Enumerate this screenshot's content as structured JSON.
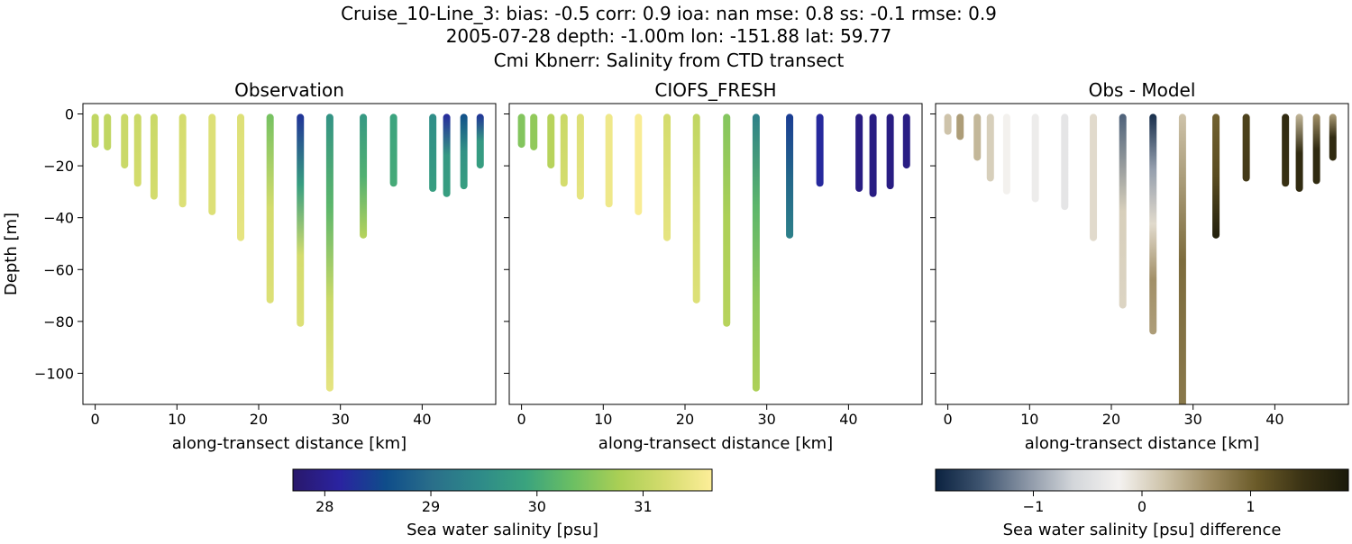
{
  "title_lines": [
    "Cruise_10-Line_3: bias: -0.5  corr: 0.9  ioa: nan  mse: 0.8  ss: -0.1  rmse: 0.9",
    "2005-07-28 depth: -1.00m lon: -151.88 lat: 59.77",
    "Cmi Kbnerr: Salinity from CTD transect"
  ],
  "chart_data": [
    {
      "type": "scatter",
      "title": "Observation",
      "xlabel": "along-transect distance [km]",
      "ylabel": "Depth [m]",
      "xlim": [
        -1.5,
        49
      ],
      "ylim": [
        -112,
        4
      ],
      "xticks": [
        0,
        10,
        20,
        30,
        40
      ],
      "yticks": [
        0,
        -20,
        -40,
        -60,
        -80,
        -100
      ],
      "colorbar": "salinity",
      "casts": [
        {
          "x": 0.0,
          "bottom": -12,
          "stops": [
            31.0,
            31.0
          ]
        },
        {
          "x": 1.5,
          "bottom": -13,
          "stops": [
            31.0,
            31.0
          ]
        },
        {
          "x": 3.6,
          "bottom": -20,
          "stops": [
            31.1,
            31.1
          ]
        },
        {
          "x": 5.2,
          "bottom": -27,
          "stops": [
            31.1,
            31.2
          ]
        },
        {
          "x": 7.2,
          "bottom": -32,
          "stops": [
            31.1,
            31.2
          ]
        },
        {
          "x": 10.7,
          "bottom": -35,
          "stops": [
            31.2,
            31.3
          ]
        },
        {
          "x": 14.3,
          "bottom": -38,
          "stops": [
            31.3,
            31.3
          ]
        },
        {
          "x": 17.8,
          "bottom": -48,
          "stops": [
            31.3,
            31.4
          ]
        },
        {
          "x": 21.4,
          "bottom": -72,
          "stops": [
            30.4,
            31.2,
            31.3
          ]
        },
        {
          "x": 25.1,
          "bottom": -81,
          "stops": [
            28.3,
            29.8,
            31.2,
            31.3
          ]
        },
        {
          "x": 28.7,
          "bottom": -106,
          "stops": [
            29.6,
            30.2,
            31.1,
            31.4
          ]
        },
        {
          "x": 32.8,
          "bottom": -47,
          "stops": [
            29.7,
            30.1,
            30.9
          ]
        },
        {
          "x": 36.5,
          "bottom": -27,
          "stops": [
            29.9,
            30.0
          ]
        },
        {
          "x": 41.3,
          "bottom": -29,
          "stops": [
            29.5,
            29.8
          ]
        },
        {
          "x": 43.0,
          "bottom": -31,
          "stops": [
            28.2,
            29.7,
            29.8
          ]
        },
        {
          "x": 45.1,
          "bottom": -28,
          "stops": [
            28.6,
            29.6,
            29.8
          ]
        },
        {
          "x": 47.1,
          "bottom": -20,
          "stops": [
            28.3,
            29.7,
            29.8
          ]
        }
      ]
    },
    {
      "type": "scatter",
      "title": "CIOFS_FRESH",
      "xlabel": "along-transect distance [km]",
      "xlim": [
        -1.5,
        49
      ],
      "ylim": [
        -112,
        4
      ],
      "xticks": [
        0,
        10,
        20,
        30,
        40
      ],
      "colorbar": "salinity",
      "casts": [
        {
          "x": 0.0,
          "bottom": -12,
          "stops": [
            30.5,
            30.5
          ]
        },
        {
          "x": 1.5,
          "bottom": -13,
          "stops": [
            30.6,
            30.6
          ]
        },
        {
          "x": 3.6,
          "bottom": -20,
          "stops": [
            30.9,
            30.9
          ]
        },
        {
          "x": 5.2,
          "bottom": -27,
          "stops": [
            31.1,
            31.2
          ]
        },
        {
          "x": 7.2,
          "bottom": -32,
          "stops": [
            31.3,
            31.4
          ]
        },
        {
          "x": 10.7,
          "bottom": -35,
          "stops": [
            31.5,
            31.5
          ]
        },
        {
          "x": 14.3,
          "bottom": -38,
          "stops": [
            31.6,
            31.6
          ]
        },
        {
          "x": 17.8,
          "bottom": -48,
          "stops": [
            31.2,
            31.4
          ]
        },
        {
          "x": 21.4,
          "bottom": -72,
          "stops": [
            31.0,
            31.2,
            31.3
          ]
        },
        {
          "x": 25.1,
          "bottom": -81,
          "stops": [
            30.5,
            30.8,
            30.9
          ]
        },
        {
          "x": 28.7,
          "bottom": -106,
          "stops": [
            29.3,
            30.2,
            30.6,
            30.8
          ]
        },
        {
          "x": 32.8,
          "bottom": -47,
          "stops": [
            28.4,
            28.9,
            29.3
          ]
        },
        {
          "x": 36.5,
          "bottom": -27,
          "stops": [
            28.2,
            28.2
          ]
        },
        {
          "x": 41.3,
          "bottom": -29,
          "stops": [
            27.9,
            27.9
          ]
        },
        {
          "x": 43.0,
          "bottom": -31,
          "stops": [
            27.9,
            27.9
          ]
        },
        {
          "x": 45.1,
          "bottom": -28,
          "stops": [
            27.9,
            27.9
          ]
        },
        {
          "x": 47.1,
          "bottom": -20,
          "stops": [
            27.9,
            27.9
          ]
        }
      ]
    },
    {
      "type": "scatter",
      "title": "Obs - Model",
      "xlabel": "along-transect distance [km]",
      "xlim": [
        -1.5,
        49
      ],
      "ylim": [
        -112,
        4
      ],
      "xticks": [
        0,
        10,
        20,
        30,
        40
      ],
      "colorbar": "difference",
      "casts": [
        {
          "x": 0.0,
          "bottom": -7,
          "stops": [
            0.2,
            0.2
          ]
        },
        {
          "x": 1.5,
          "bottom": -9,
          "stops": [
            0.5,
            0.5
          ]
        },
        {
          "x": 3.6,
          "bottom": -17,
          "stops": [
            0.3,
            0.3
          ]
        },
        {
          "x": 5.2,
          "bottom": -25,
          "stops": [
            0.1,
            0.1
          ]
        },
        {
          "x": 7.2,
          "bottom": -30,
          "stops": [
            -0.2,
            -0.2
          ]
        },
        {
          "x": 10.7,
          "bottom": -33,
          "stops": [
            -0.3,
            -0.3
          ]
        },
        {
          "x": 14.3,
          "bottom": -36,
          "stops": [
            -0.4,
            -0.4
          ]
        },
        {
          "x": 17.8,
          "bottom": -48,
          "stops": [
            0.0,
            0.0
          ]
        },
        {
          "x": 21.4,
          "bottom": -74,
          "stops": [
            -1.4,
            0.1,
            0.05
          ]
        },
        {
          "x": 25.1,
          "bottom": -84,
          "stops": [
            -1.8,
            -1.0,
            0.0,
            0.6,
            0.5
          ]
        },
        {
          "x": 28.7,
          "bottom": -112,
          "stops": [
            0.2,
            0.9,
            0.8
          ]
        },
        {
          "x": 32.8,
          "bottom": -47,
          "stops": [
            1.0,
            1.2,
            1.8
          ]
        },
        {
          "x": 36.5,
          "bottom": -25,
          "stops": [
            1.3,
            1.4
          ]
        },
        {
          "x": 41.3,
          "bottom": -27,
          "stops": [
            1.6,
            1.5
          ]
        },
        {
          "x": 43.0,
          "bottom": -29,
          "stops": [
            0.3,
            1.6,
            1.6
          ]
        },
        {
          "x": 45.1,
          "bottom": -26,
          "stops": [
            0.6,
            1.6,
            1.6
          ]
        },
        {
          "x": 47.1,
          "bottom": -17,
          "stops": [
            0.5,
            1.6,
            1.6
          ]
        }
      ]
    }
  ],
  "colorbars": [
    {
      "label": "Sea water salinity [psu]",
      "range": [
        27.7,
        31.65
      ],
      "ticks": [
        28,
        29,
        30,
        31
      ],
      "colormap": "haline",
      "colors": [
        "#29186b",
        "#2a23a0",
        "#0f4d8a",
        "#2a6f8a",
        "#2e8a89",
        "#3aa37e",
        "#6bbf63",
        "#aacf55",
        "#d5dc6e",
        "#fdee99"
      ]
    },
    {
      "label": "Sea water salinity [psu] difference",
      "range": [
        -1.9,
        1.9
      ],
      "ticks": [
        -1,
        0,
        1
      ],
      "tick_labels": [
        "−1",
        "0",
        "1"
      ],
      "colormap": "diff",
      "colors": [
        "#0b2240",
        "#3f5570",
        "#8b96a6",
        "#d3d6da",
        "#f4f2f0",
        "#cdc2a8",
        "#9e8c62",
        "#6a5a28",
        "#3a3214",
        "#1a1a0a"
      ]
    }
  ]
}
